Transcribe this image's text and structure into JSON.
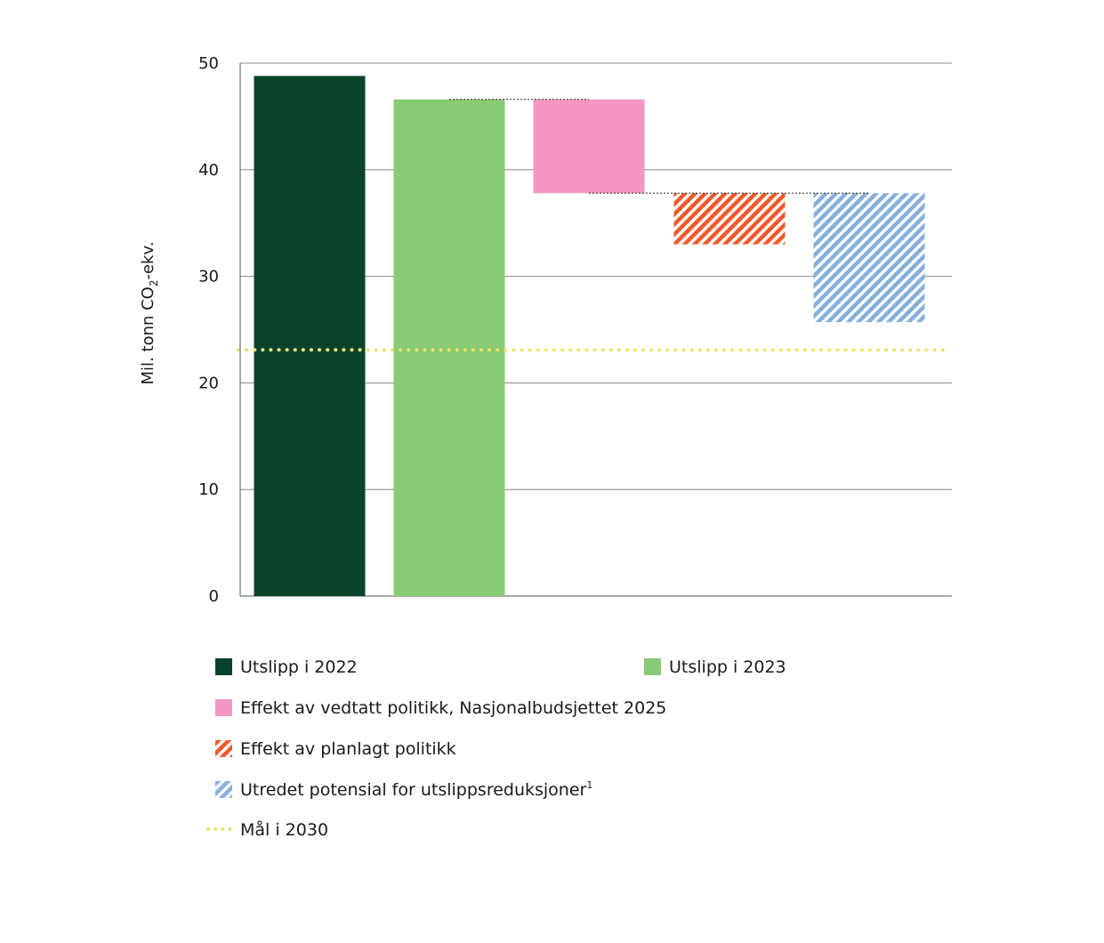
{
  "chart_data": {
    "type": "bar",
    "subtype": "waterfall",
    "title": "",
    "xlabel": "",
    "ylabel_parts": [
      "Mil. tonn CO",
      "2",
      "-ekv."
    ],
    "ylim": [
      0,
      50
    ],
    "yticks": [
      "0",
      "10",
      "20",
      "30",
      "40",
      "50"
    ],
    "ytick_values": [
      0,
      10,
      20,
      30,
      40,
      50
    ],
    "grid": true,
    "legend_placement": "bottom",
    "bars": [
      {
        "name": "Utslipp i 2022",
        "start": 0,
        "end": 48.8,
        "color": "#0a422a",
        "pattern": "solid"
      },
      {
        "name": "Utslipp i 2023",
        "start": 0,
        "end": 46.6,
        "color": "#88ca76",
        "pattern": "solid"
      },
      {
        "name": "Effekt av vedtatt politikk, Nasjonalbudsjettet 2025",
        "start": 37.8,
        "end": 46.6,
        "color": "#f597c2",
        "pattern": "solid"
      },
      {
        "name": "Effekt av planlagt politikk",
        "start": 33.0,
        "end": 37.8,
        "color": "#ef5a2a",
        "pattern": "hatch"
      },
      {
        "name": "Utredet potensial for utslippsreduksjoner",
        "start": 25.7,
        "end": 37.8,
        "color": "#86afdb",
        "pattern": "hatch"
      }
    ],
    "connectors": [
      {
        "value": 46.6,
        "from_bar": 1,
        "to_bar": 2
      },
      {
        "value": 37.8,
        "from_bar": 2,
        "to_bar": 4
      }
    ],
    "target_line": {
      "name": "Mål i 2030",
      "value": 23.1,
      "color": "#e6e66e"
    }
  },
  "legend": [
    {
      "label": "Utslipp i 2022",
      "sup": ""
    },
    {
      "label": "Utslipp i 2023",
      "sup": ""
    },
    {
      "label": "Effekt av vedtatt politikk, Nasjonalbudsjettet 2025",
      "sup": ""
    },
    {
      "label": "Effekt av planlagt politikk",
      "sup": ""
    },
    {
      "label": "Utredet potensial for utslippsreduksjoner",
      "sup": "1"
    },
    {
      "label": "Mål i 2030",
      "sup": ""
    }
  ]
}
